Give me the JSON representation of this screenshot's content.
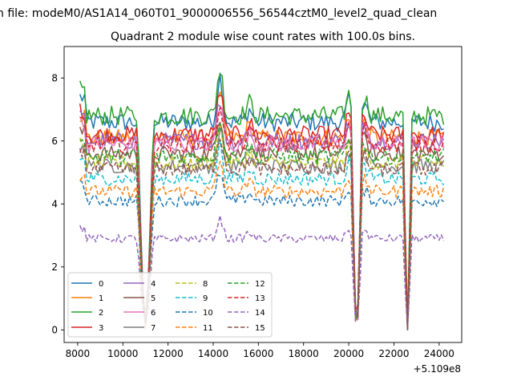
{
  "suptitle": "n file: modeM0/AS1A14_060T01_9000006556_56544cztM0_level2_quad_clean",
  "chart_data": {
    "type": "line",
    "title": "Quadrant 2 module wise count rates with 100.0s bins.",
    "xlabel": "",
    "ylabel": "",
    "x_offset_label": "+5.109e8",
    "xlim": [
      7400,
      25000
    ],
    "ylim": [
      -0.4,
      9.0
    ],
    "xticks": [
      8000,
      10000,
      12000,
      14000,
      16000,
      18000,
      20000,
      22000,
      24000
    ],
    "yticks": [
      0,
      2,
      4,
      6,
      8
    ],
    "x_range": [
      8100,
      24200
    ],
    "bin_size": 100,
    "gaps": [
      {
        "center": 11000,
        "half_width": 350,
        "floor": 0.05
      },
      {
        "center": 20350,
        "half_width": 220,
        "floor": 0.0
      },
      {
        "center": 22600,
        "half_width": 160,
        "floor": 0.0
      }
    ],
    "series": [
      {
        "name": "0",
        "color": "#1f77b4",
        "dashed": false,
        "level": 6.6
      },
      {
        "name": "1",
        "color": "#ff7f0e",
        "dashed": false,
        "level": 6.1
      },
      {
        "name": "2",
        "color": "#2ca02c",
        "dashed": false,
        "level": 6.8
      },
      {
        "name": "3",
        "color": "#d62728",
        "dashed": false,
        "level": 6.2
      },
      {
        "name": "4",
        "color": "#9467bd",
        "dashed": false,
        "level": 6.0
      },
      {
        "name": "5",
        "color": "#8c564b",
        "dashed": false,
        "level": 5.6
      },
      {
        "name": "6",
        "color": "#e377c2",
        "dashed": false,
        "level": 5.9
      },
      {
        "name": "7",
        "color": "#7f7f7f",
        "dashed": false,
        "level": 5.2
      },
      {
        "name": "8",
        "color": "#bcbd22",
        "dashed": true,
        "level": 5.3
      },
      {
        "name": "9",
        "color": "#17becf",
        "dashed": true,
        "level": 4.8
      },
      {
        "name": "10",
        "color": "#1f77b4",
        "dashed": true,
        "level": 4.1
      },
      {
        "name": "11",
        "color": "#ff7f0e",
        "dashed": true,
        "level": 4.4
      },
      {
        "name": "12",
        "color": "#2ca02c",
        "dashed": true,
        "level": 5.5
      },
      {
        "name": "13",
        "color": "#d62728",
        "dashed": true,
        "level": 5.9
      },
      {
        "name": "14",
        "color": "#9467bd",
        "dashed": true,
        "level": 2.9
      },
      {
        "name": "15",
        "color": "#8c564b",
        "dashed": true,
        "level": 5.1
      }
    ]
  }
}
